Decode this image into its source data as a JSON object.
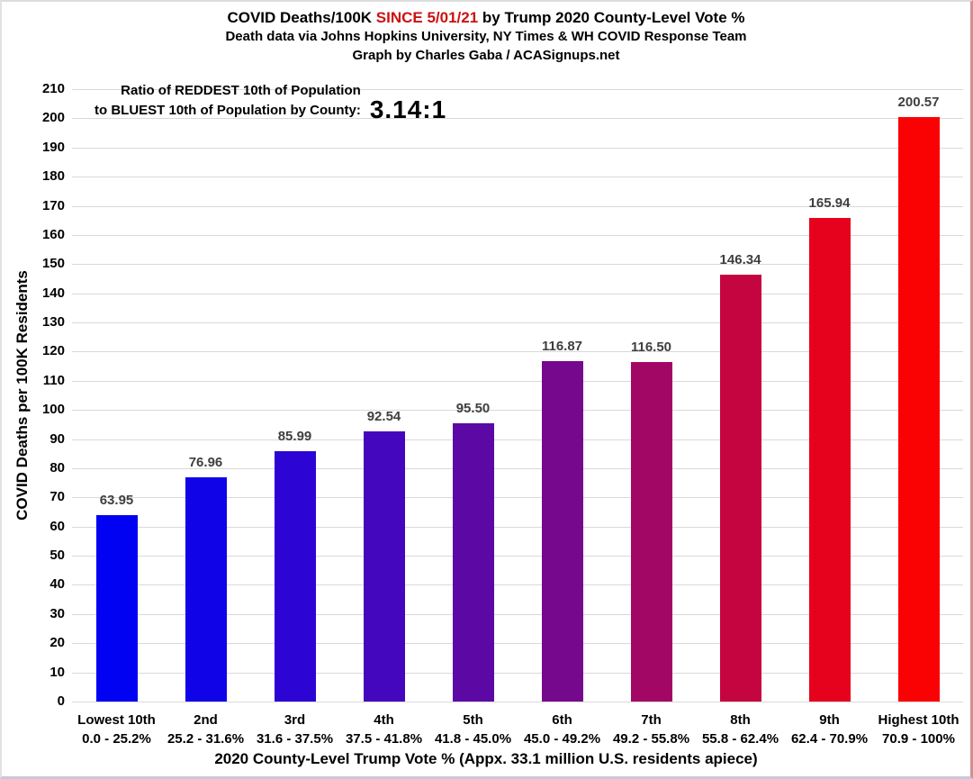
{
  "header": {
    "title_prefix": "COVID Deaths/100K ",
    "title_highlight": "SINCE 5/01/21",
    "title_suffix": " by Trump 2020 County-Level Vote %",
    "highlight_color": "#cc1111",
    "subtitle1": "Death data via Johns Hopkins University, NY Times & WH COVID Response Team",
    "subtitle2": "Graph by Charles Gaba / ACASignups.net"
  },
  "annotation": {
    "line1": "Ratio of REDDEST 10th of Population",
    "line2": "to BLUEST 10th of Population by County:",
    "ratio": "3.14:1"
  },
  "chart_data": {
    "type": "bar",
    "title": "COVID Deaths/100K SINCE 5/01/21 by Trump 2020 County-Level Vote %",
    "subtitle": "Death data via Johns Hopkins University, NY Times & WH COVID Response Team",
    "credit": "Graph by Charles Gaba / ACASignups.net",
    "xlabel": "2020 County-Level Trump Vote % (Appx. 33.1 million U.S. residents apiece)",
    "ylabel": "COVID Deaths per 100K Residents",
    "ylim": [
      0,
      210
    ],
    "ytick_step": 10,
    "grid": true,
    "legend": "none",
    "categories": [
      "Lowest 10th",
      "2nd",
      "3rd",
      "4th",
      "5th",
      "6th",
      "7th",
      "8th",
      "9th",
      "Highest 10th"
    ],
    "category_ranges": [
      "0.0 - 25.2%",
      "25.2 - 31.6%",
      "31.6 - 37.5%",
      "37.5 - 41.8%",
      "41.8 - 45.0%",
      "45.0 - 49.2%",
      "49.2 - 55.8%",
      "55.8 - 62.4%",
      "62.4 - 70.9%",
      "70.9 - 100%"
    ],
    "values": [
      63.95,
      76.96,
      85.99,
      92.54,
      95.5,
      116.87,
      116.5,
      146.34,
      165.94,
      200.57
    ],
    "value_labels": [
      "63.95",
      "76.96",
      "85.99",
      "92.54",
      "95.50",
      "116.87",
      "116.50",
      "146.34",
      "165.94",
      "200.57"
    ],
    "bar_colors": [
      "#0202f2",
      "#1103e8",
      "#2c05d5",
      "#4507bd",
      "#5c08a5",
      "#75088c",
      "#a30766",
      "#c50540",
      "#e6021d",
      "#fa0203"
    ],
    "value_label_color": "#3f3f3f",
    "gridline_color": "#d9d9d9"
  }
}
